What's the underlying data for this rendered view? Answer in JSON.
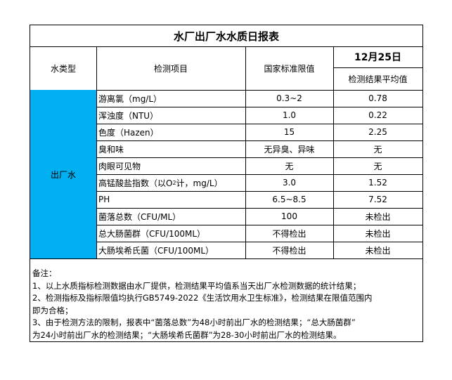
{
  "title": "水厂出厂水水质日报表",
  "header": {
    "water_type": "水类型",
    "item": "检测项目",
    "standard": "国家标准限值",
    "date": "12月25日",
    "result": "检测结果平均值"
  },
  "water_type_value": "出厂水",
  "accent_color": "#00b0f0",
  "rows": [
    {
      "item": "游离氯（mg/L）",
      "standard": "0.3~2",
      "result": "0.78"
    },
    {
      "item": "浑浊度（NTU）",
      "standard": "1.0",
      "result": "0.22"
    },
    {
      "item": "色度（Hazen）",
      "standard": "15",
      "result": "2.25"
    },
    {
      "item": "臭和味",
      "standard": "无异臭、异味",
      "result": "无"
    },
    {
      "item": "肉眼可见物",
      "standard": "无",
      "result": "无"
    },
    {
      "item_pre": "高锰酸盐指数（以O",
      "item_sub": "2",
      "item_post": "计，mg/L）",
      "standard": "3.0",
      "result": "1.52"
    },
    {
      "item": "PH",
      "standard": "6.5~8.5",
      "result": "7.52"
    },
    {
      "item": "菌落总数（CFU/ML）",
      "standard": "100",
      "result": "未检出"
    },
    {
      "item": "总大肠菌群（CFU/100ML）",
      "standard": "不得检出",
      "result": "未检出"
    },
    {
      "item": "大肠埃希氏菌（CFU/100ML）",
      "standard": "不得检出",
      "result": "未检出"
    }
  ],
  "notes": [
    "备注：",
    "1、以上水质指标检测数据由水厂提供，检测结果平均值系当天出厂水检测数据的统计结果；",
    "2、检测指标及指标限值均执行GB5749-2022《生活饮用水卫生标准》，检测结果在限值范围内",
    "即为合格；",
    "3、由于检测方法的限制，报表中“菌落总数”为48小时前出厂水的检测结果；“总大肠菌群”",
    "为24小时前出厂水的检测结果；“大肠埃希氏菌群”为28-30小时前出厂水的检测结果。"
  ]
}
